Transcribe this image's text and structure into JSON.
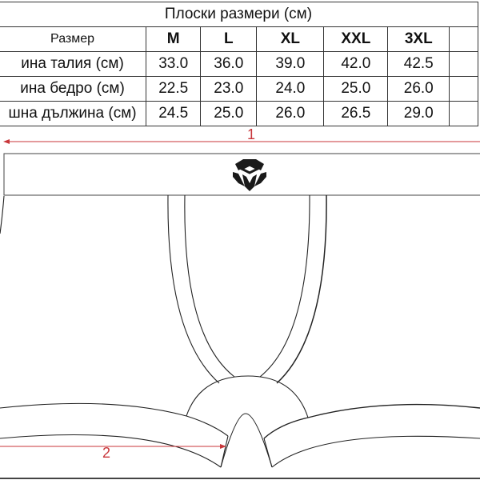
{
  "title": "Плоски размери (см)",
  "table": {
    "header": [
      "Размер",
      "M",
      "L",
      "XL",
      "XXL",
      "3XL"
    ],
    "rows": [
      {
        "label": "ина талия (см)",
        "values": [
          "33.0",
          "36.0",
          "39.0",
          "42.0",
          "42.5"
        ]
      },
      {
        "label": "ина бедро (см)",
        "values": [
          "22.5",
          "23.0",
          "24.0",
          "25.0",
          "26.0"
        ]
      },
      {
        "label": "шна дължина (см)",
        "values": [
          "24.5",
          "25.0",
          "26.0",
          "26.5",
          "29.0"
        ]
      }
    ]
  },
  "diagram": {
    "measure_1_label": "1",
    "measure_2_label": "2",
    "arrow_color": "#c8363a",
    "logo": "brand-logo-icon"
  }
}
